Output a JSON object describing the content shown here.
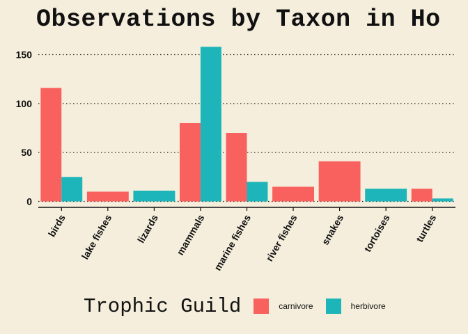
{
  "chart_data": {
    "type": "bar",
    "title": "Observations by Taxon in Ho",
    "xlabel": "",
    "ylabel": "",
    "ylim": [
      0,
      160
    ],
    "yticks": [
      0,
      50,
      100,
      150
    ],
    "grid": true,
    "legend_position": "bottom",
    "legend_title": "Trophic Guild",
    "categories": [
      "birds",
      "lake fishes",
      "lizards",
      "mammals",
      "marine fishes",
      "river fishes",
      "snakes",
      "tortoises",
      "turtles"
    ],
    "series": [
      {
        "name": "carnivore",
        "color": "#f8615e",
        "values": [
          116,
          10,
          null,
          80,
          70,
          15,
          41,
          null,
          13
        ]
      },
      {
        "name": "herbivore",
        "color": "#1db5b9",
        "values": [
          25,
          null,
          11,
          158,
          20,
          null,
          null,
          13,
          3
        ]
      }
    ]
  }
}
